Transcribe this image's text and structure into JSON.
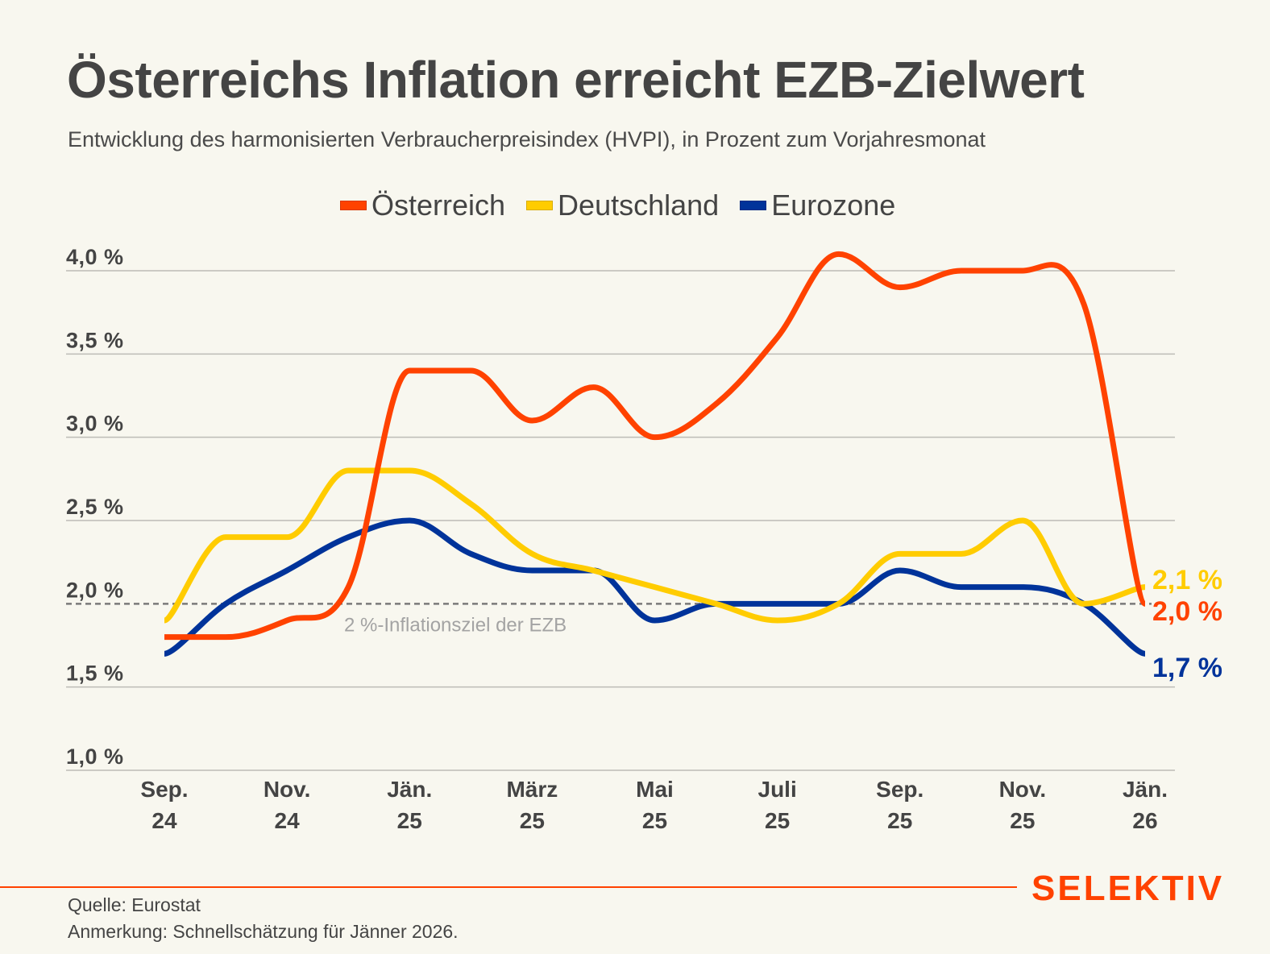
{
  "header": {
    "title": "Österreichs Inflation erreicht EZB-Zielwert",
    "subtitle": "Entwicklung des harmonisierten Verbraucherpreisindex (HVPI), in Prozent zum Vorjahresmonat"
  },
  "footer": {
    "source": "Quelle: Eurostat",
    "note": "Anmerkung: Schnellschätzung für Jänner 2026.",
    "brand": "SELEKTIV"
  },
  "colors": {
    "background": "#f8f7ef",
    "text": "#444444",
    "grid": "#bdbcb6",
    "target_line": "#7a7a7a",
    "brand": "#ff4200"
  },
  "chart_data": {
    "type": "line",
    "title": "Österreichs Inflation erreicht EZB-Zielwert",
    "subtitle": "Entwicklung des harmonisierten Verbraucherpreisindex (HVPI), in Prozent zum Vorjahresmonat",
    "xlabel": "",
    "ylabel": "",
    "x": [
      "2024-09",
      "2024-10",
      "2024-11",
      "2024-12",
      "2025-01",
      "2025-02",
      "2025-03",
      "2025-04",
      "2025-05",
      "2025-06",
      "2025-07",
      "2025-08",
      "2025-09",
      "2025-10",
      "2025-11",
      "2025-12",
      "2026-01"
    ],
    "x_ticks": [
      {
        "index": 0,
        "line1": "Sep.",
        "line2": "24"
      },
      {
        "index": 2,
        "line1": "Nov.",
        "line2": "24"
      },
      {
        "index": 4,
        "line1": "Jän.",
        "line2": "25"
      },
      {
        "index": 6,
        "line1": "März",
        "line2": "25"
      },
      {
        "index": 8,
        "line1": "Mai",
        "line2": "25"
      },
      {
        "index": 10,
        "line1": "Juli",
        "line2": "25"
      },
      {
        "index": 12,
        "line1": "Sep.",
        "line2": "25"
      },
      {
        "index": 14,
        "line1": "Nov.",
        "line2": "25"
      },
      {
        "index": 16,
        "line1": "Jän.",
        "line2": "26"
      }
    ],
    "y_ticks": [
      {
        "value": 1.0,
        "label": "1,0 %"
      },
      {
        "value": 1.5,
        "label": "1,5 %"
      },
      {
        "value": 2.0,
        "label": "2,0 %"
      },
      {
        "value": 2.5,
        "label": "2,5 %"
      },
      {
        "value": 3.0,
        "label": "3,0 %"
      },
      {
        "value": 3.5,
        "label": "3,5 %"
      },
      {
        "value": 4.0,
        "label": "4,0 %"
      }
    ],
    "ylim": [
      1.0,
      4.0
    ],
    "grid": true,
    "legend_position": "top-center",
    "series": [
      {
        "name": "Österreich",
        "color": "#ff4200",
        "values": [
          1.8,
          1.8,
          1.9,
          2.1,
          3.4,
          3.4,
          3.1,
          3.3,
          3.0,
          3.2,
          3.6,
          4.1,
          3.9,
          4.0,
          4.0,
          3.8,
          2.0
        ],
        "end_label": "2,0 %"
      },
      {
        "name": "Deutschland",
        "color": "#ffcc00",
        "values": [
          1.9,
          2.4,
          2.4,
          2.8,
          2.8,
          2.6,
          2.3,
          2.2,
          2.1,
          2.0,
          1.9,
          2.0,
          2.3,
          2.3,
          2.5,
          2.0,
          2.1
        ],
        "end_label": "2,1 %"
      },
      {
        "name": "Eurozone",
        "color": "#00339a",
        "values": [
          1.7,
          2.0,
          2.2,
          2.4,
          2.5,
          2.3,
          2.2,
          2.2,
          1.9,
          2.0,
          2.0,
          2.0,
          2.2,
          2.1,
          2.1,
          2.0,
          1.7
        ],
        "end_label": "1,7 %"
      }
    ],
    "annotations": [
      {
        "type": "reference_line",
        "value": 2.0,
        "style": "dashed",
        "label": "2 %-Inflationsziel der EZB"
      }
    ]
  }
}
